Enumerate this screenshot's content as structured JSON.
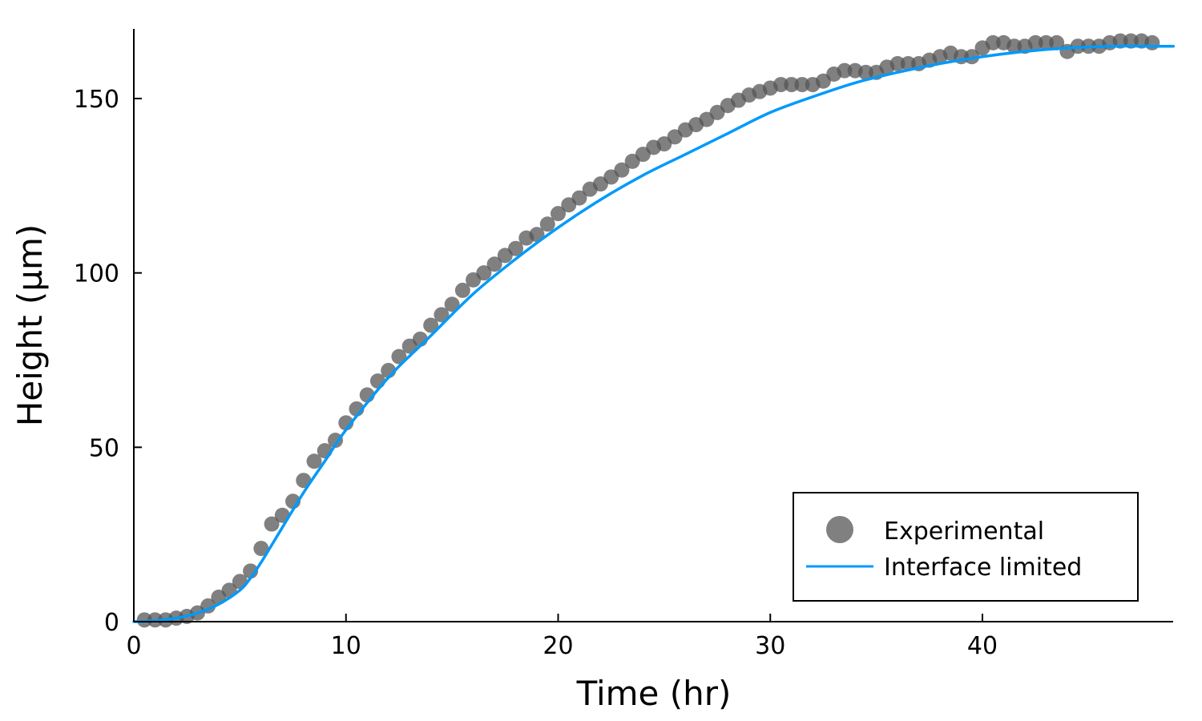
{
  "chart_data": {
    "type": "scatter",
    "title": "",
    "xlabel": "Time (hr)",
    "ylabel": "Height (µm)",
    "xlim": [
      0,
      49
    ],
    "ylim": [
      0,
      170
    ],
    "xticks": [
      0,
      10,
      20,
      30,
      40
    ],
    "yticks": [
      0,
      50,
      100,
      150
    ],
    "grid": false,
    "legend_position": "bottom-right",
    "series": [
      {
        "name": "Experimental",
        "kind": "scatter",
        "color": "#555555",
        "x": [
          0.5,
          1.0,
          1.5,
          2.0,
          2.5,
          3.0,
          3.5,
          4.0,
          4.5,
          5.0,
          5.5,
          6.0,
          6.5,
          7.0,
          7.5,
          8.0,
          8.5,
          9.0,
          9.5,
          10.0,
          10.5,
          11.0,
          11.5,
          12.0,
          12.5,
          13.0,
          13.5,
          14.0,
          14.5,
          15.0,
          15.5,
          16.0,
          16.5,
          17.0,
          17.5,
          18.0,
          18.5,
          19.0,
          19.5,
          20.0,
          20.5,
          21.0,
          21.5,
          22.0,
          22.5,
          23.0,
          23.5,
          24.0,
          24.5,
          25.0,
          25.5,
          26.0,
          26.5,
          27.0,
          27.5,
          28.0,
          28.5,
          29.0,
          29.5,
          30.0,
          30.5,
          31.0,
          31.5,
          32.0,
          32.5,
          33.0,
          33.5,
          34.0,
          34.5,
          35.0,
          35.5,
          36.0,
          36.5,
          37.0,
          37.5,
          38.0,
          38.5,
          39.0,
          39.5,
          40.0,
          40.5,
          41.0,
          41.5,
          42.0,
          42.5,
          43.0,
          43.5,
          44.0,
          44.5,
          45.0,
          45.5,
          46.0,
          46.5,
          47.0,
          47.5,
          48.0
        ],
        "y": [
          0.5,
          0.5,
          0.5,
          1,
          1.5,
          2.5,
          4.5,
          7,
          9,
          11.5,
          14.5,
          21,
          28,
          30.5,
          34.5,
          40.5,
          46,
          49,
          52,
          57,
          61,
          65,
          69,
          72,
          76,
          79,
          81,
          85,
          88,
          91,
          95,
          98,
          100,
          102.5,
          105,
          107,
          110,
          111,
          114,
          117,
          119.5,
          121.5,
          124,
          125.5,
          127.5,
          129.5,
          132,
          134,
          136,
          137,
          139,
          141,
          142.5,
          144,
          146,
          148,
          149.5,
          151,
          152,
          153,
          154,
          154,
          154,
          154,
          155,
          157,
          158,
          158,
          157.5,
          157.5,
          159,
          160,
          160,
          160,
          161,
          162,
          163,
          162,
          162,
          164.5,
          166,
          166,
          165,
          165,
          166,
          166,
          166,
          163.5,
          165,
          165,
          165,
          166,
          166.5,
          166.5,
          166.5,
          166
        ]
      },
      {
        "name": "Interface limited",
        "kind": "line",
        "color": "#009AFA",
        "x": [
          0,
          1,
          2,
          3,
          4,
          5,
          5.5,
          6,
          7,
          8,
          9,
          10,
          12,
          14,
          16,
          18,
          20,
          22,
          24,
          26,
          28,
          30,
          32,
          34,
          36,
          38,
          40,
          42,
          44,
          46,
          48,
          49
        ],
        "y": [
          0,
          0.3,
          1,
          2.5,
          5,
          9,
          12.5,
          17,
          27,
          37,
          46,
          55,
          70,
          82,
          94,
          104,
          113,
          121,
          128,
          134,
          140,
          146,
          150.5,
          154.5,
          157.5,
          160,
          162,
          163.5,
          164.5,
          165,
          165,
          165
        ]
      }
    ]
  }
}
